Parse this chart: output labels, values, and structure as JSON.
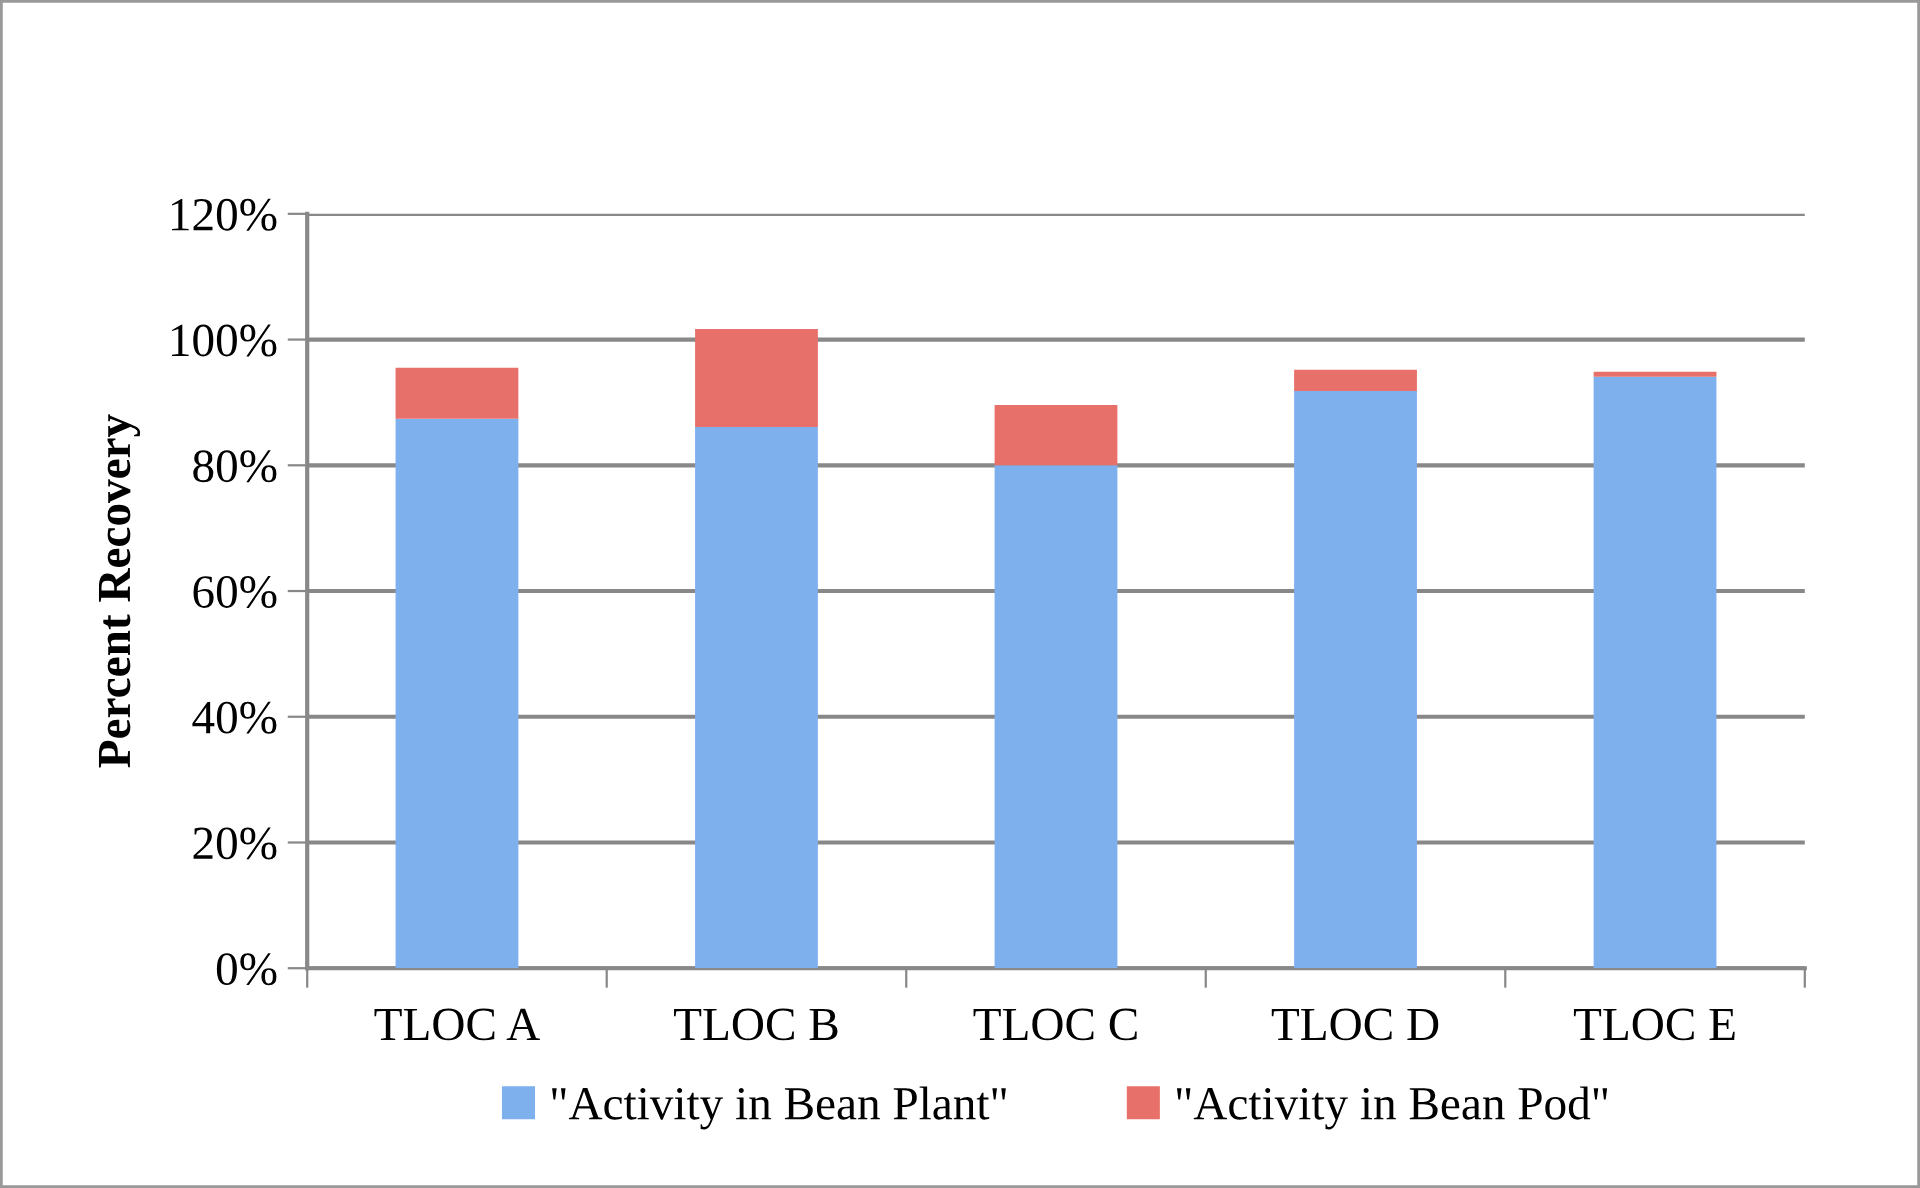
{
  "chart_data": {
    "type": "bar",
    "stacked": true,
    "ylabel": "Percent Recovery",
    "categories": [
      "TLOC A",
      "TLOC B",
      "TLOC C",
      "TLOC D",
      "TLOC E"
    ],
    "series": [
      {
        "name": "\"Activity in Bean Plant\"",
        "color": "#7fb0ee",
        "values": [
          87.4,
          86.1,
          80,
          91.8,
          94.1
        ]
      },
      {
        "name": "\"Activity in Bean Pod\"",
        "color": "#e8706a",
        "values": [
          8.1,
          15.6,
          9.6,
          3.4,
          0.8
        ]
      }
    ],
    "ylim": [
      0,
      120
    ],
    "yticks": [
      {
        "value": 0,
        "label": "0%"
      },
      {
        "value": 20,
        "label": "20%"
      },
      {
        "value": 40,
        "label": "40%"
      },
      {
        "value": 60,
        "label": "60%"
      },
      {
        "value": 80,
        "label": "80%"
      },
      {
        "value": 100,
        "label": "100%"
      },
      {
        "value": 120,
        "label": "120%"
      }
    ],
    "grid": "y",
    "legend": "bottom"
  }
}
